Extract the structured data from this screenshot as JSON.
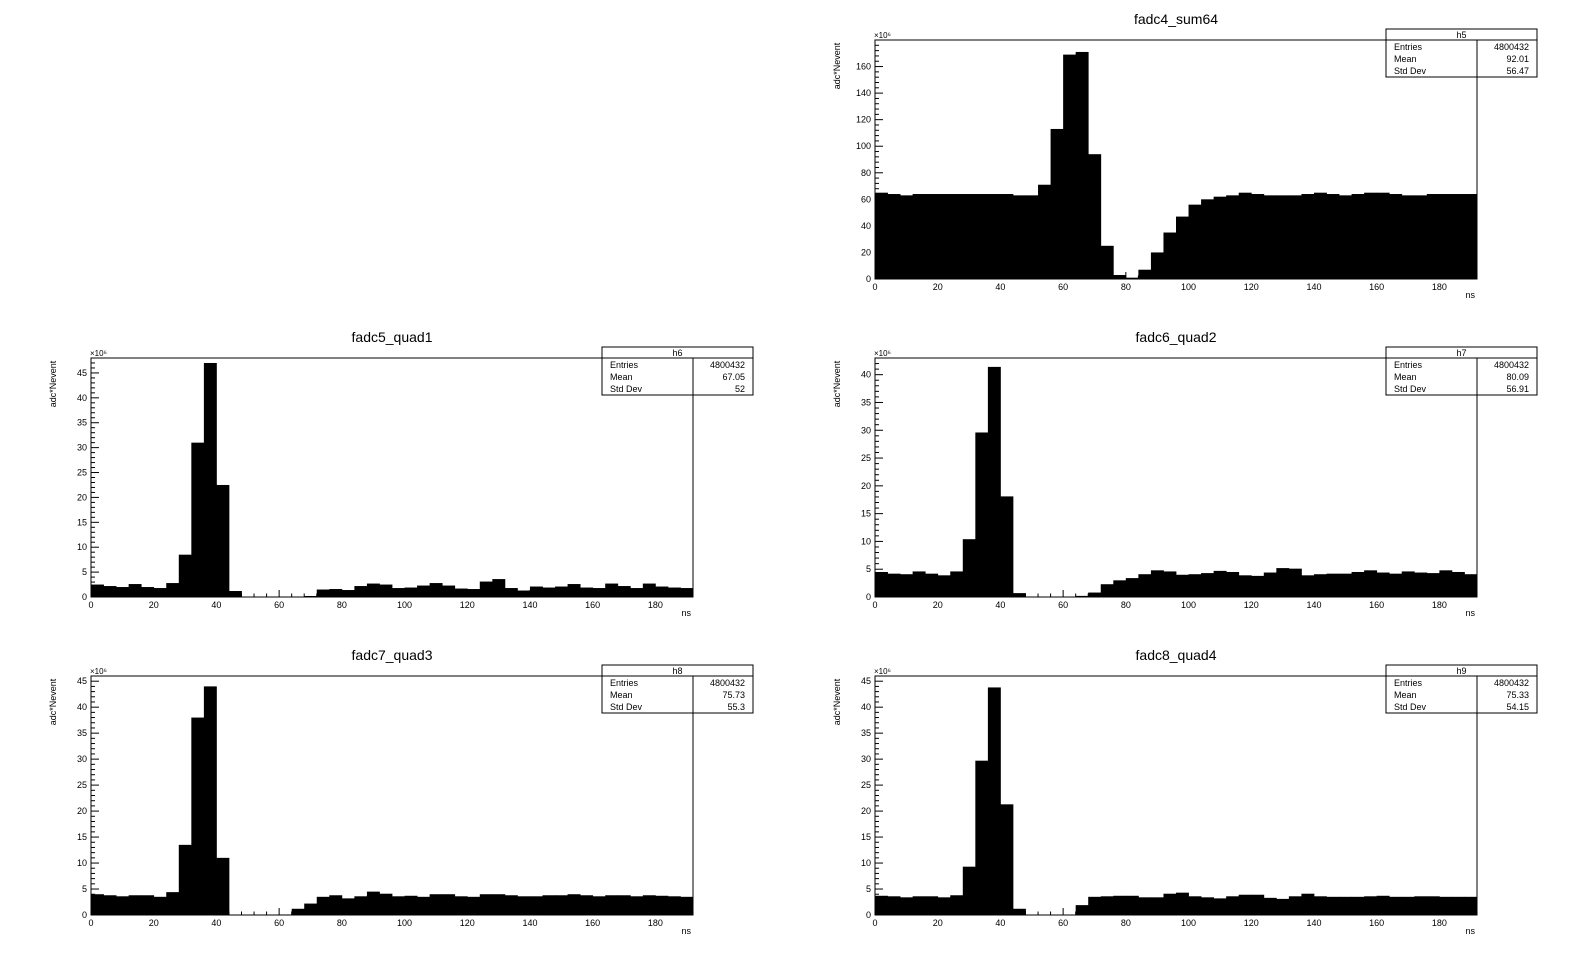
{
  "chart_data": [
    {
      "type": "bar",
      "title": "fadc4_sum64",
      "xlabel": "ns",
      "ylabel": "adc*Nevent",
      "y_exponent_label": "×10⁶",
      "xlim": [
        0,
        192
      ],
      "ylim": [
        0,
        180
      ],
      "bin_width": 4,
      "x_ticks": [
        0,
        20,
        40,
        60,
        80,
        100,
        120,
        140,
        160,
        180
      ],
      "y_ticks": [
        0,
        20,
        40,
        60,
        80,
        100,
        120,
        140,
        160
      ],
      "values": [
        65,
        64,
        63,
        64,
        64,
        64,
        64,
        64,
        64,
        64,
        64,
        63,
        63,
        71,
        113,
        169,
        171,
        94,
        25,
        3,
        1,
        7,
        20,
        35,
        47,
        56,
        60,
        62,
        63,
        65,
        64,
        63,
        63,
        63,
        64,
        65,
        64,
        63,
        64,
        65,
        65,
        64,
        63,
        63,
        64,
        64,
        64,
        64
      ],
      "stats": {
        "name": "h5",
        "entries_label": "Entries",
        "entries": "4800432",
        "mean_label": "Mean",
        "mean": "92.01",
        "std_label": "Std Dev",
        "std": "56.47"
      }
    },
    {
      "type": "bar",
      "title": "fadc5_quad1",
      "xlabel": "ns",
      "ylabel": "adc*Nevent",
      "y_exponent_label": "×10⁶",
      "xlim": [
        0,
        192
      ],
      "ylim": [
        0,
        48
      ],
      "bin_width": 4,
      "x_ticks": [
        0,
        20,
        40,
        60,
        80,
        100,
        120,
        140,
        160,
        180
      ],
      "y_ticks": [
        0,
        5,
        10,
        15,
        20,
        25,
        30,
        35,
        40,
        45
      ],
      "values": [
        2.5,
        2.2,
        2.0,
        2.6,
        2.0,
        1.8,
        2.8,
        8.5,
        31,
        47,
        22.5,
        1.2,
        0,
        0,
        0,
        0,
        0,
        0.2,
        1.5,
        1.6,
        1.4,
        2.2,
        2.7,
        2.5,
        1.8,
        1.9,
        2.3,
        2.8,
        2.3,
        1.7,
        1.6,
        3.1,
        3.6,
        1.8,
        1.3,
        2.1,
        1.9,
        2.1,
        2.6,
        1.9,
        1.8,
        2.7,
        2.2,
        1.8,
        2.7,
        2.1,
        1.9,
        1.8
      ],
      "stats": {
        "name": "h6",
        "entries_label": "Entries",
        "entries": "4800432",
        "mean_label": "Mean",
        "mean": "67.05",
        "std_label": "Std Dev",
        "std": "52"
      }
    },
    {
      "type": "bar",
      "title": "fadc6_quad2",
      "xlabel": "ns",
      "ylabel": "adc*Nevent",
      "y_exponent_label": "×10⁶",
      "xlim": [
        0,
        192
      ],
      "ylim": [
        0,
        43
      ],
      "bin_width": 4,
      "x_ticks": [
        0,
        20,
        40,
        60,
        80,
        100,
        120,
        140,
        160,
        180
      ],
      "y_ticks": [
        0,
        5,
        10,
        15,
        20,
        25,
        30,
        35,
        40
      ],
      "values": [
        4.5,
        4.2,
        4.1,
        4.6,
        4.2,
        3.9,
        4.6,
        10.4,
        29.6,
        41.4,
        18.1,
        0.7,
        0,
        0,
        0,
        0,
        0.2,
        0.8,
        2.3,
        3.0,
        3.4,
        4.1,
        4.8,
        4.6,
        4.0,
        4.1,
        4.3,
        4.7,
        4.5,
        3.9,
        3.8,
        4.4,
        5.2,
        5.1,
        3.9,
        4.1,
        4.2,
        4.2,
        4.5,
        4.8,
        4.4,
        4.2,
        4.6,
        4.4,
        4.3,
        4.8,
        4.5,
        4.1
      ],
      "stats": {
        "name": "h7",
        "entries_label": "Entries",
        "entries": "4800432",
        "mean_label": "Mean",
        "mean": "80.09",
        "std_label": "Std Dev",
        "std": "56.91"
      }
    },
    {
      "type": "bar",
      "title": "fadc7_quad3",
      "xlabel": "ns",
      "ylabel": "adc*Nevent",
      "y_exponent_label": "×10⁶",
      "xlim": [
        0,
        192
      ],
      "ylim": [
        0,
        46
      ],
      "bin_width": 4,
      "x_ticks": [
        0,
        20,
        40,
        60,
        80,
        100,
        120,
        140,
        160,
        180
      ],
      "y_ticks": [
        0,
        5,
        10,
        15,
        20,
        25,
        30,
        35,
        40,
        45
      ],
      "values": [
        4.0,
        3.8,
        3.6,
        3.8,
        3.8,
        3.5,
        4.4,
        13.5,
        38,
        44,
        11,
        0,
        0,
        0,
        0,
        0.1,
        1.2,
        2.2,
        3.5,
        3.8,
        3.2,
        3.6,
        4.5,
        4.1,
        3.6,
        3.7,
        3.5,
        4.0,
        4.0,
        3.6,
        3.5,
        4.0,
        4.0,
        3.8,
        3.6,
        3.6,
        3.8,
        3.8,
        4.0,
        3.8,
        3.6,
        3.8,
        3.8,
        3.6,
        3.8,
        3.7,
        3.6,
        3.5
      ],
      "stats": {
        "name": "h8",
        "entries_label": "Entries",
        "entries": "4800432",
        "mean_label": "Mean",
        "mean": "75.73",
        "std_label": "Std Dev",
        "std": "55.3"
      }
    },
    {
      "type": "bar",
      "title": "fadc8_quad4",
      "xlabel": "ns",
      "ylabel": "adc*Nevent",
      "y_exponent_label": "×10⁶",
      "xlim": [
        0,
        192
      ],
      "ylim": [
        0,
        46
      ],
      "bin_width": 4,
      "x_ticks": [
        0,
        20,
        40,
        60,
        80,
        100,
        120,
        140,
        160,
        180
      ],
      "y_ticks": [
        0,
        5,
        10,
        15,
        20,
        25,
        30,
        35,
        40,
        45
      ],
      "values": [
        3.7,
        3.6,
        3.4,
        3.6,
        3.6,
        3.4,
        3.8,
        9.3,
        29.7,
        43.8,
        21.3,
        1.2,
        0,
        0,
        0,
        0,
        1.9,
        3.5,
        3.6,
        3.7,
        3.7,
        3.4,
        3.4,
        4.1,
        4.3,
        3.6,
        3.4,
        3.2,
        3.6,
        3.9,
        3.9,
        3.3,
        3.1,
        3.6,
        4.1,
        3.6,
        3.5,
        3.5,
        3.5,
        3.6,
        3.7,
        3.5,
        3.5,
        3.6,
        3.6,
        3.5,
        3.5,
        3.5
      ],
      "stats": {
        "name": "h9",
        "entries_label": "Entries",
        "entries": "4800432",
        "mean_label": "Mean",
        "mean": "75.33",
        "std_label": "Std Dev",
        "std": "54.15"
      }
    }
  ]
}
